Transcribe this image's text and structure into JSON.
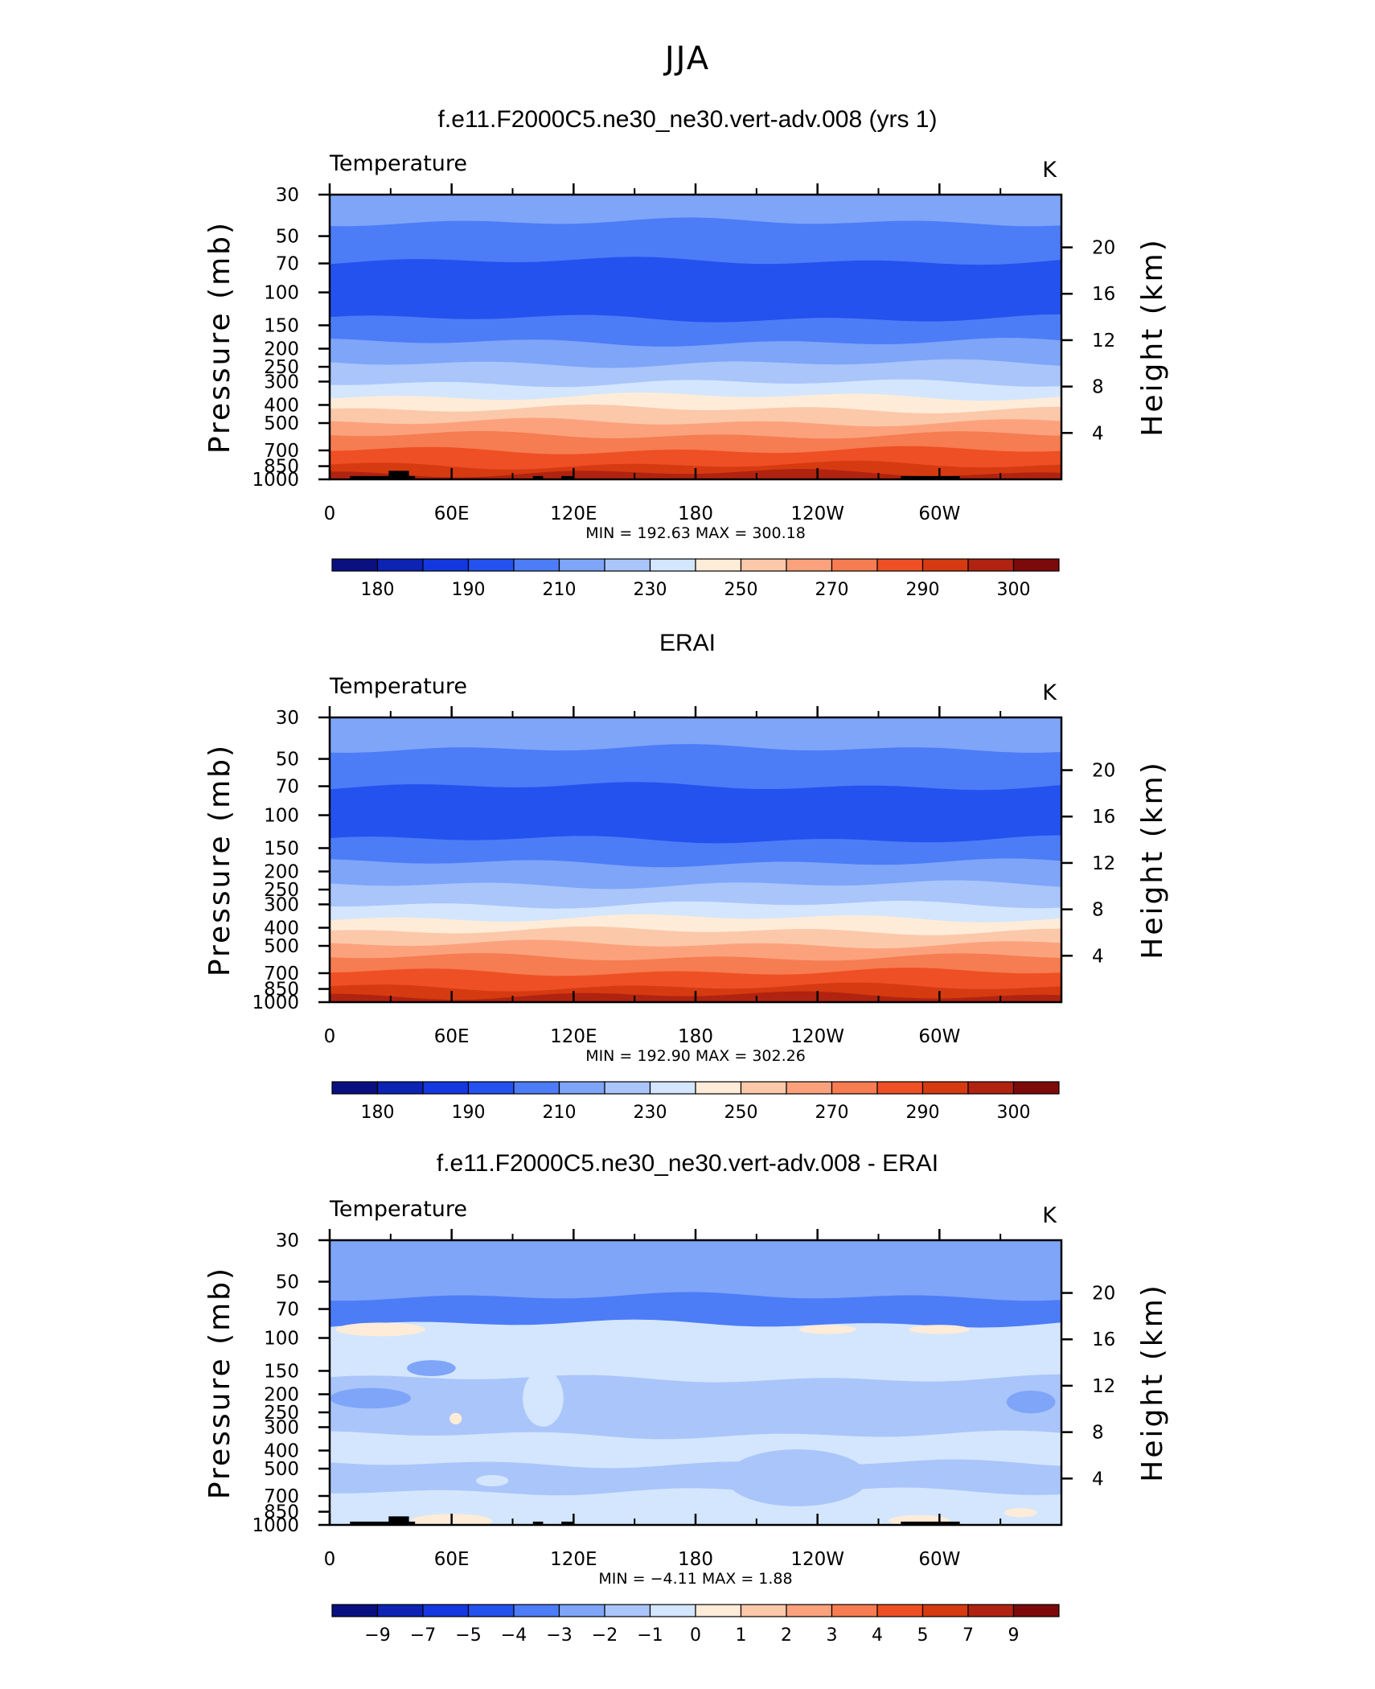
{
  "page_title": "JJA",
  "chart_data": [
    {
      "type": "heatmap",
      "title": "f.e11.F2000C5.ne30_ne30.vert-adv.008 (yrs 1)",
      "variable_label": "Temperature",
      "units_label": "K",
      "ylabel": "Pressure (mb)",
      "y2label": "Height (km)",
      "x_ticks": [
        "0",
        "60E",
        "120E",
        "180",
        "120W",
        "60W"
      ],
      "x_tick_values": [
        0,
        60,
        120,
        180,
        240,
        300
      ],
      "xlim": [
        0,
        360
      ],
      "y_ticks": [
        "30",
        "50",
        "70",
        "100",
        "150",
        "200",
        "250",
        "300",
        "400",
        "500",
        "700",
        "850",
        "1000"
      ],
      "y_tick_values": [
        30,
        50,
        70,
        100,
        150,
        200,
        250,
        300,
        400,
        500,
        700,
        850,
        1000
      ],
      "y_log_scale": true,
      "ylim": [
        1000,
        30
      ],
      "y2_ticks": [
        "20",
        "16",
        "12",
        "8",
        "4"
      ],
      "y2_tick_values": [
        20,
        16,
        12,
        8,
        4
      ],
      "min_label": "MIN = 192.63 MAX = 300.18",
      "min_value": 192.63,
      "max_value": 300.18,
      "colorbar_labels": [
        "180",
        "190",
        "210",
        "230",
        "250",
        "270",
        "290",
        "300"
      ],
      "colorbar_levels": [
        180,
        185,
        190,
        200,
        210,
        220,
        230,
        240,
        250,
        260,
        270,
        280,
        290,
        295,
        300
      ],
      "colorbar_colors": [
        "#0a0f80",
        "#0c23b4",
        "#1438e0",
        "#2452ef",
        "#4d7cf7",
        "#7ea5f8",
        "#aac5fa",
        "#d3e6fd",
        "#feecd9",
        "#fcc8aa",
        "#fba27d",
        "#f67c51",
        "#ef4f24",
        "#d63a11",
        "#b02310",
        "#7d0a0a"
      ],
      "pressure_layers": [
        {
          "p_top": 30,
          "p_bottom": 42,
          "color": "#7ea5f8"
        },
        {
          "p_top": 42,
          "p_bottom": 68,
          "color": "#4d7cf7"
        },
        {
          "p_top": 68,
          "p_bottom": 138,
          "color": "#2452ef"
        },
        {
          "p_top": 138,
          "p_bottom": 185,
          "color": "#4d7cf7"
        },
        {
          "p_top": 185,
          "p_bottom": 240,
          "color": "#7ea5f8"
        },
        {
          "p_top": 240,
          "p_bottom": 305,
          "color": "#aac5fa"
        },
        {
          "p_top": 305,
          "p_bottom": 360,
          "color": "#d3e6fd"
        },
        {
          "p_top": 360,
          "p_bottom": 420,
          "color": "#feecd9"
        },
        {
          "p_top": 420,
          "p_bottom": 495,
          "color": "#fcc8aa"
        },
        {
          "p_top": 495,
          "p_bottom": 580,
          "color": "#fba27d"
        },
        {
          "p_top": 580,
          "p_bottom": 700,
          "color": "#f67c51"
        },
        {
          "p_top": 700,
          "p_bottom": 840,
          "color": "#ef4f24"
        },
        {
          "p_top": 840,
          "p_bottom": 925,
          "color": "#d63a11"
        },
        {
          "p_top": 925,
          "p_bottom": 1000,
          "color": "#b02310"
        }
      ],
      "topography": [
        {
          "lon_start": 10,
          "lon_end": 42,
          "p_top": 960
        },
        {
          "lon_start": 29,
          "lon_end": 39,
          "p_top": 900
        },
        {
          "lon_start": 100,
          "lon_end": 105,
          "p_top": 960
        },
        {
          "lon_start": 114,
          "lon_end": 120,
          "p_top": 960
        },
        {
          "lon_start": 281,
          "lon_end": 310,
          "p_top": 960
        }
      ]
    },
    {
      "type": "heatmap",
      "title": "ERAI",
      "variable_label": "Temperature",
      "units_label": "K",
      "ylabel": "Pressure (mb)",
      "y2label": "Height (km)",
      "x_ticks": [
        "0",
        "60E",
        "120E",
        "180",
        "120W",
        "60W"
      ],
      "x_tick_values": [
        0,
        60,
        120,
        180,
        240,
        300
      ],
      "xlim": [
        0,
        360
      ],
      "y_ticks": [
        "30",
        "50",
        "70",
        "100",
        "150",
        "200",
        "250",
        "300",
        "400",
        "500",
        "700",
        "850",
        "1000"
      ],
      "y_tick_values": [
        30,
        50,
        70,
        100,
        150,
        200,
        250,
        300,
        400,
        500,
        700,
        850,
        1000
      ],
      "y_log_scale": true,
      "ylim": [
        1000,
        30
      ],
      "y2_ticks": [
        "20",
        "16",
        "12",
        "8",
        "4"
      ],
      "y2_tick_values": [
        20,
        16,
        12,
        8,
        4
      ],
      "min_label": "MIN = 192.90 MAX = 302.26",
      "min_value": 192.9,
      "max_value": 302.26,
      "colorbar_labels": [
        "180",
        "190",
        "210",
        "230",
        "250",
        "270",
        "290",
        "300"
      ],
      "colorbar_levels": [
        180,
        185,
        190,
        200,
        210,
        220,
        230,
        240,
        250,
        260,
        270,
        280,
        290,
        295,
        300
      ],
      "colorbar_colors": [
        "#0a0f80",
        "#0c23b4",
        "#1438e0",
        "#2452ef",
        "#4d7cf7",
        "#7ea5f8",
        "#aac5fa",
        "#d3e6fd",
        "#feecd9",
        "#fcc8aa",
        "#fba27d",
        "#f67c51",
        "#ef4f24",
        "#d63a11",
        "#b02310",
        "#7d0a0a"
      ],
      "pressure_layers": [
        {
          "p_top": 30,
          "p_bottom": 44,
          "color": "#7ea5f8"
        },
        {
          "p_top": 44,
          "p_bottom": 70,
          "color": "#4d7cf7"
        },
        {
          "p_top": 70,
          "p_bottom": 135,
          "color": "#2452ef"
        },
        {
          "p_top": 135,
          "p_bottom": 180,
          "color": "#4d7cf7"
        },
        {
          "p_top": 180,
          "p_bottom": 235,
          "color": "#7ea5f8"
        },
        {
          "p_top": 235,
          "p_bottom": 300,
          "color": "#aac5fa"
        },
        {
          "p_top": 300,
          "p_bottom": 355,
          "color": "#d3e6fd"
        },
        {
          "p_top": 355,
          "p_bottom": 415,
          "color": "#feecd9"
        },
        {
          "p_top": 415,
          "p_bottom": 490,
          "color": "#fcc8aa"
        },
        {
          "p_top": 490,
          "p_bottom": 575,
          "color": "#fba27d"
        },
        {
          "p_top": 575,
          "p_bottom": 690,
          "color": "#f67c51"
        },
        {
          "p_top": 690,
          "p_bottom": 830,
          "color": "#ef4f24"
        },
        {
          "p_top": 830,
          "p_bottom": 920,
          "color": "#d63a11"
        },
        {
          "p_top": 920,
          "p_bottom": 1000,
          "color": "#b02310"
        }
      ],
      "topography": []
    },
    {
      "type": "heatmap",
      "title": "f.e11.F2000C5.ne30_ne30.vert-adv.008 - ERAI",
      "variable_label": "Temperature",
      "units_label": "K",
      "ylabel": "Pressure (mb)",
      "y2label": "Height (km)",
      "x_ticks": [
        "0",
        "60E",
        "120E",
        "180",
        "120W",
        "60W"
      ],
      "x_tick_values": [
        0,
        60,
        120,
        180,
        240,
        300
      ],
      "xlim": [
        0,
        360
      ],
      "y_ticks": [
        "30",
        "50",
        "70",
        "100",
        "150",
        "200",
        "250",
        "300",
        "400",
        "500",
        "700",
        "850",
        "1000"
      ],
      "y_tick_values": [
        30,
        50,
        70,
        100,
        150,
        200,
        250,
        300,
        400,
        500,
        700,
        850,
        1000
      ],
      "y_log_scale": true,
      "ylim": [
        1000,
        30
      ],
      "y2_ticks": [
        "20",
        "16",
        "12",
        "8",
        "4"
      ],
      "y2_tick_values": [
        20,
        16,
        12,
        8,
        4
      ],
      "min_label": "MIN = −4.11 MAX = 1.88",
      "min_value": -4.11,
      "max_value": 1.88,
      "colorbar_labels": [
        "−9",
        "−7",
        "−5",
        "−4",
        "−3",
        "−2",
        "−1",
        "0",
        "1",
        "2",
        "3",
        "4",
        "5",
        "7",
        "9"
      ],
      "colorbar_levels": [
        -9,
        -7,
        -5,
        -4,
        -3,
        -2,
        -1,
        0,
        1,
        2,
        3,
        4,
        5,
        7,
        9
      ],
      "colorbar_colors": [
        "#0a0f80",
        "#0c23b4",
        "#1438e0",
        "#2452ef",
        "#4d7cf7",
        "#7ea5f8",
        "#aac5fa",
        "#d3e6fd",
        "#feecd9",
        "#fcc8aa",
        "#fba27d",
        "#f67c51",
        "#ef4f24",
        "#d63a11",
        "#b02310",
        "#7d0a0a"
      ],
      "pressure_layers": [
        {
          "p_top": 30,
          "p_bottom": 60,
          "color": "#7ea5f8"
        },
        {
          "p_top": 60,
          "p_bottom": 84,
          "color": "#4d7cf7"
        },
        {
          "p_top": 84,
          "p_bottom": 165,
          "color": "#d3e6fd"
        },
        {
          "p_top": 165,
          "p_bottom": 330,
          "color": "#aac5fa"
        },
        {
          "p_top": 330,
          "p_bottom": 470,
          "color": "#d3e6fd"
        },
        {
          "p_top": 470,
          "p_bottom": 660,
          "color": "#aac5fa"
        },
        {
          "p_top": 660,
          "p_bottom": 1000,
          "color": "#d3e6fd"
        }
      ],
      "patches": [
        {
          "lon": 25,
          "p": 90,
          "rx_deg": 22,
          "ry_frac": 0.012,
          "color": "#feecd9"
        },
        {
          "lon": 245,
          "p": 90,
          "rx_deg": 14,
          "ry_frac": 0.008,
          "color": "#feecd9"
        },
        {
          "lon": 300,
          "p": 90,
          "rx_deg": 15,
          "ry_frac": 0.008,
          "color": "#feecd9"
        },
        {
          "lon": 50,
          "p": 145,
          "rx_deg": 12,
          "ry_frac": 0.014,
          "color": "#7ea5f8"
        },
        {
          "lon": 20,
          "p": 210,
          "rx_deg": 20,
          "ry_frac": 0.018,
          "color": "#7ea5f8"
        },
        {
          "lon": 345,
          "p": 220,
          "rx_deg": 12,
          "ry_frac": 0.02,
          "color": "#7ea5f8"
        },
        {
          "lon": 62,
          "p": 270,
          "rx_deg": 3,
          "ry_frac": 0.01,
          "color": "#feecd9"
        },
        {
          "lon": 105,
          "p": 210,
          "rx_deg": 10,
          "ry_frac": 0.05,
          "color": "#d3e6fd"
        },
        {
          "lon": 230,
          "p": 560,
          "rx_deg": 35,
          "ry_frac": 0.05,
          "color": "#aac5fa"
        },
        {
          "lon": 80,
          "p": 580,
          "rx_deg": 8,
          "ry_frac": 0.01,
          "color": "#d3e6fd"
        },
        {
          "lon": 60,
          "p": 950,
          "rx_deg": 20,
          "ry_frac": 0.012,
          "color": "#feecd9"
        },
        {
          "lon": 290,
          "p": 950,
          "rx_deg": 15,
          "ry_frac": 0.01,
          "color": "#feecd9"
        },
        {
          "lon": 340,
          "p": 860,
          "rx_deg": 8,
          "ry_frac": 0.008,
          "color": "#feecd9"
        }
      ],
      "topography": [
        {
          "lon_start": 10,
          "lon_end": 42,
          "p_top": 960
        },
        {
          "lon_start": 29,
          "lon_end": 39,
          "p_top": 900
        },
        {
          "lon_start": 100,
          "lon_end": 105,
          "p_top": 960
        },
        {
          "lon_start": 114,
          "lon_end": 120,
          "p_top": 960
        },
        {
          "lon_start": 281,
          "lon_end": 310,
          "p_top": 960
        }
      ]
    }
  ]
}
